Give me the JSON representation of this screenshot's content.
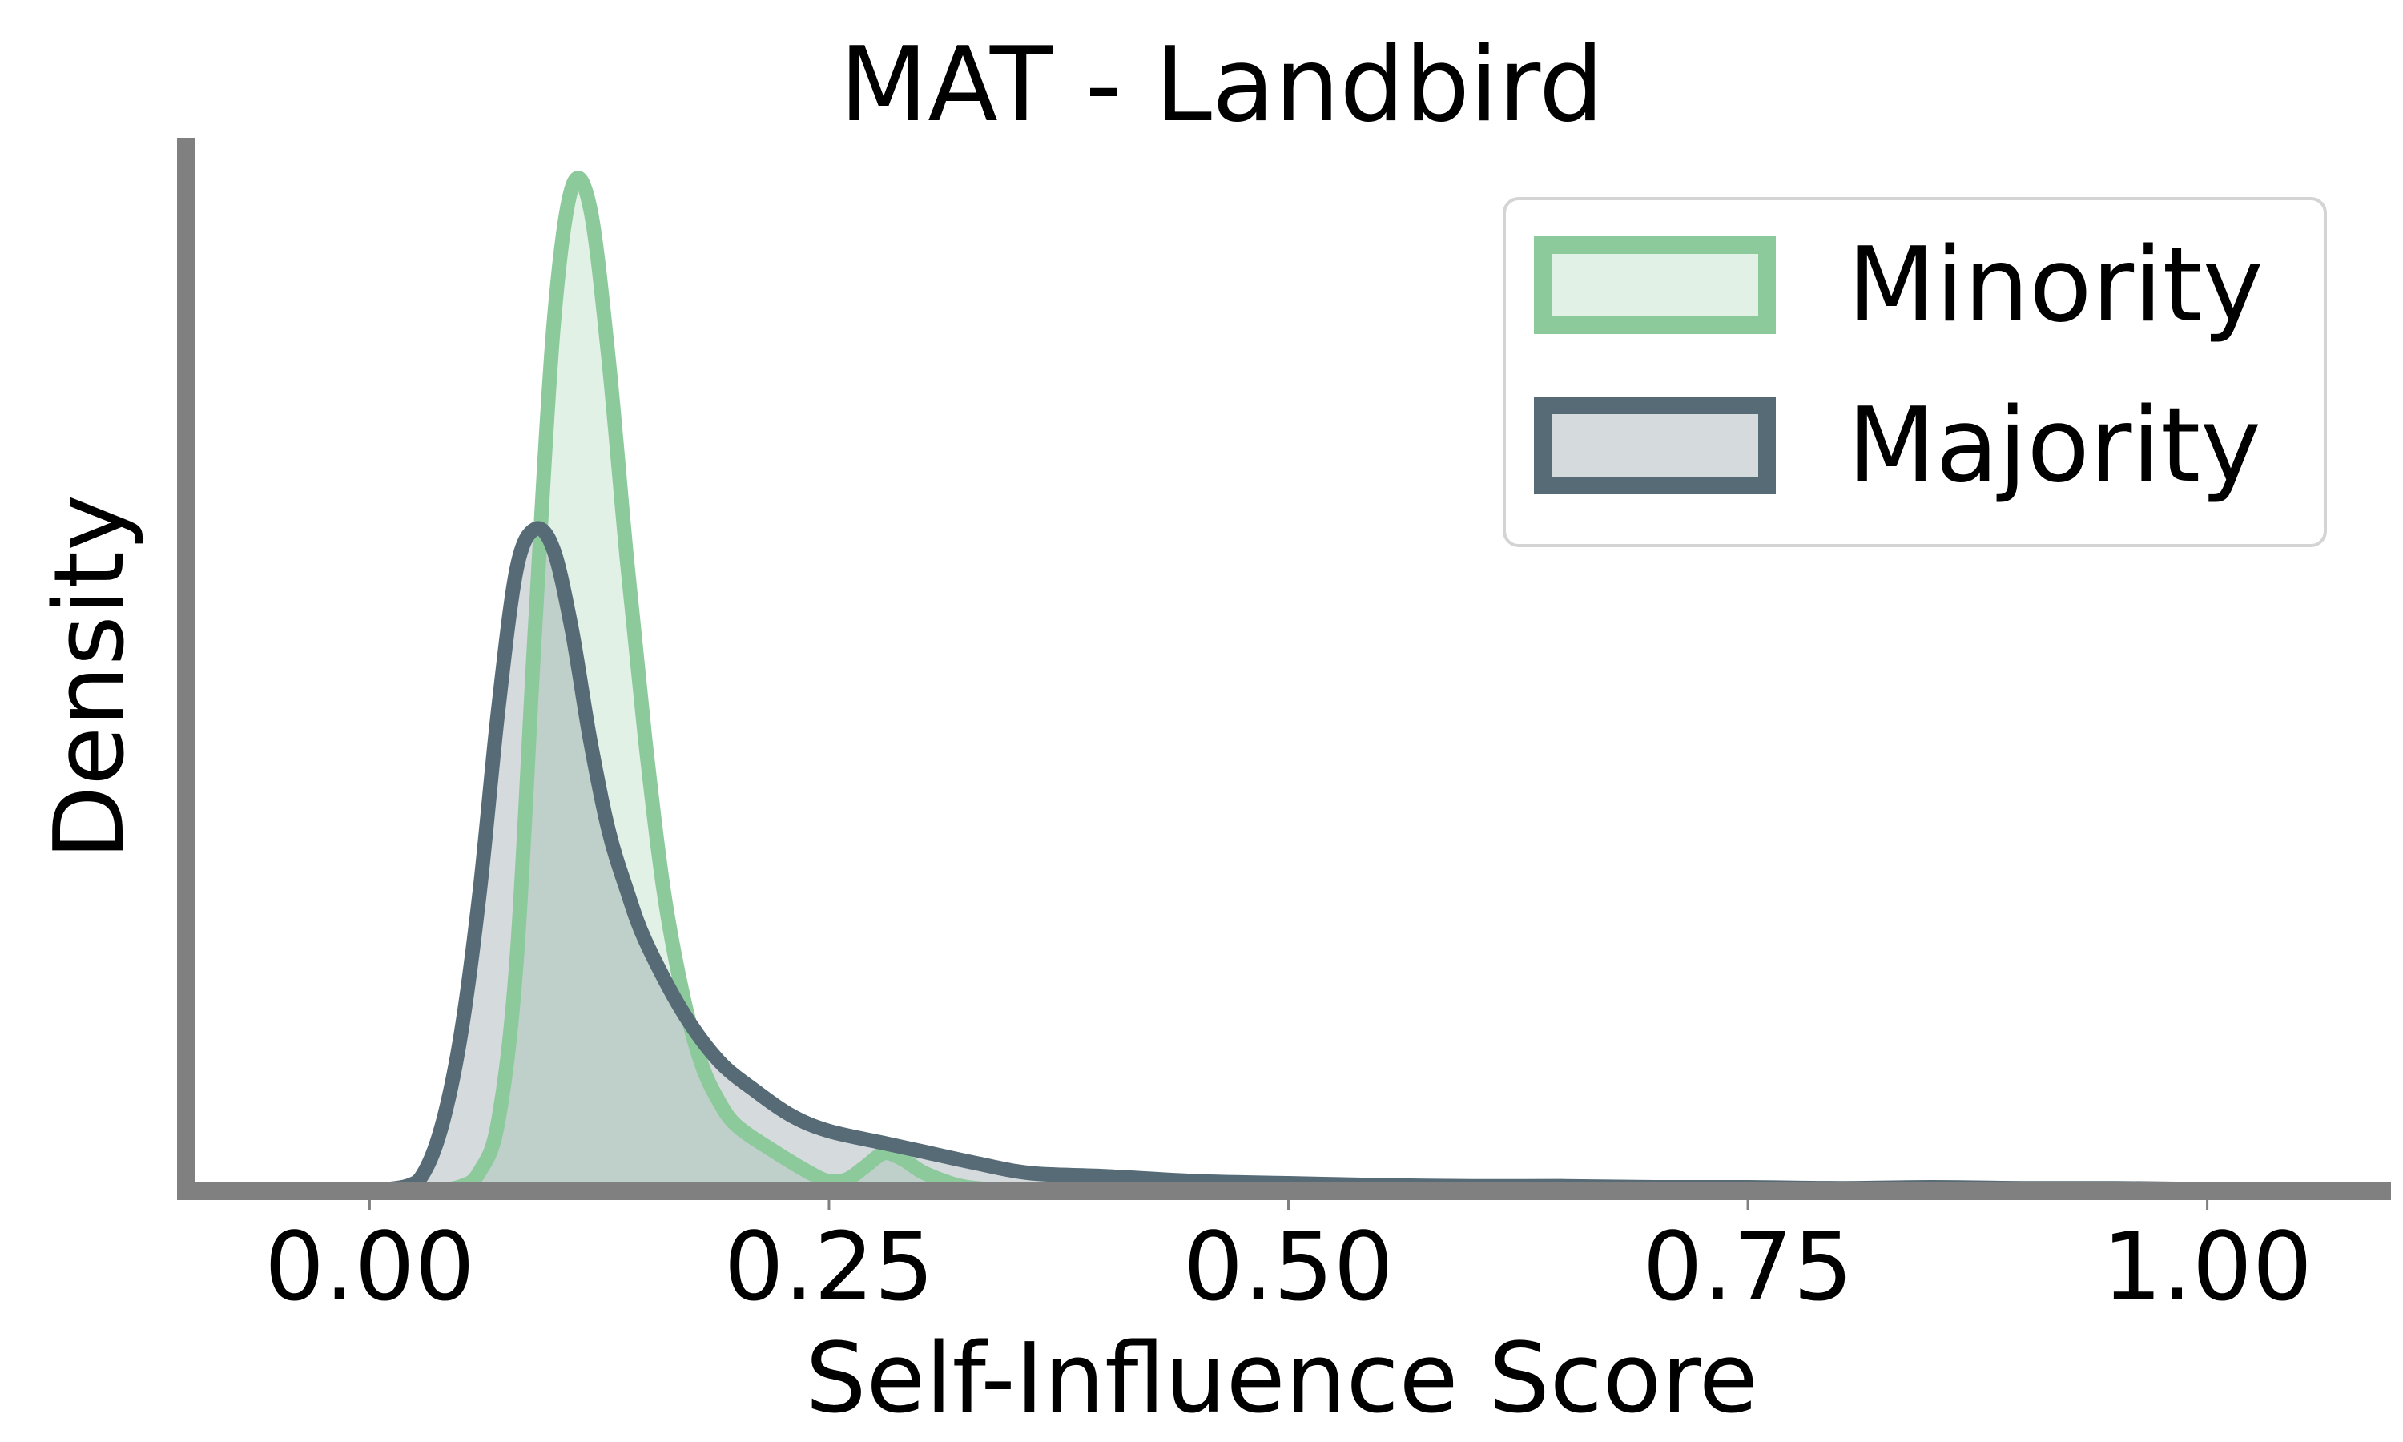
{
  "chart_data": {
    "type": "area",
    "title": "MAT - Landbird",
    "xlabel": "Self-Influence Score",
    "ylabel": "Density",
    "xlim": [
      -0.1,
      1.1
    ],
    "ylim": [
      0,
      1.05
    ],
    "xticks": [
      0.0,
      0.25,
      0.5,
      0.75,
      1.0
    ],
    "xtick_labels": [
      "0.00",
      "0.25",
      "0.50",
      "0.75",
      "1.00"
    ],
    "yticks_shown": false,
    "grid": false,
    "legend_position": "top-right",
    "series": [
      {
        "name": "Minority",
        "color": "#8cc99b",
        "fill": "#8cc99b",
        "x": [
          0.0,
          0.03,
          0.05,
          0.06,
          0.07,
          0.08,
          0.09,
          0.1,
          0.11,
          0.12,
          0.13,
          0.14,
          0.15,
          0.16,
          0.17,
          0.18,
          0.19,
          0.2,
          0.22,
          0.24,
          0.25,
          0.26,
          0.27,
          0.28,
          0.29,
          0.3,
          0.31,
          0.32,
          0.33,
          0.35,
          0.37,
          0.4
        ],
        "values": [
          0.0,
          0.0,
          0.005,
          0.02,
          0.07,
          0.23,
          0.56,
          0.86,
          1.0,
          0.98,
          0.83,
          0.63,
          0.45,
          0.3,
          0.2,
          0.13,
          0.09,
          0.065,
          0.04,
          0.018,
          0.01,
          0.012,
          0.025,
          0.038,
          0.032,
          0.02,
          0.012,
          0.006,
          0.003,
          0.001,
          0.0,
          0.0
        ]
      },
      {
        "name": "Majority",
        "color": "#566b76",
        "fill": "#566b76",
        "x": [
          -0.005,
          0.02,
          0.03,
          0.04,
          0.05,
          0.06,
          0.07,
          0.08,
          0.09,
          0.1,
          0.11,
          0.12,
          0.13,
          0.14,
          0.15,
          0.17,
          0.19,
          0.21,
          0.23,
          0.25,
          0.28,
          0.3,
          0.33,
          0.36,
          0.4,
          0.45,
          0.5,
          0.55,
          0.6,
          0.65,
          0.7,
          0.75,
          0.8,
          0.85,
          0.9,
          0.95,
          1.0,
          1.06
        ],
        "values": [
          0.0,
          0.005,
          0.02,
          0.07,
          0.16,
          0.3,
          0.48,
          0.62,
          0.66,
          0.64,
          0.56,
          0.45,
          0.36,
          0.3,
          0.25,
          0.18,
          0.13,
          0.1,
          0.075,
          0.06,
          0.048,
          0.04,
          0.028,
          0.018,
          0.015,
          0.01,
          0.008,
          0.006,
          0.005,
          0.005,
          0.004,
          0.004,
          0.003,
          0.004,
          0.003,
          0.003,
          0.002,
          0.0
        ]
      }
    ]
  }
}
